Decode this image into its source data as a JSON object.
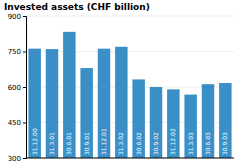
{
  "chart_data": {
    "type": "bar",
    "title": "Invested assets (CHF billion)",
    "categories": [
      "31.12.00",
      "31.3.01",
      "30.6.01",
      "30.9.01",
      "31.12.01",
      "31.3.02",
      "30.6.02",
      "30.9.02",
      "31.12.02",
      "31.3.03",
      "30.6.03",
      "30.9.03"
    ],
    "values": [
      762,
      760,
      833,
      680,
      762,
      770,
      632,
      600,
      590,
      568,
      612,
      617
    ],
    "color": "#3a8fc7",
    "ylim": [
      300,
      900
    ],
    "yticks": [
      300,
      450,
      600,
      750,
      900
    ],
    "grid": true
  }
}
